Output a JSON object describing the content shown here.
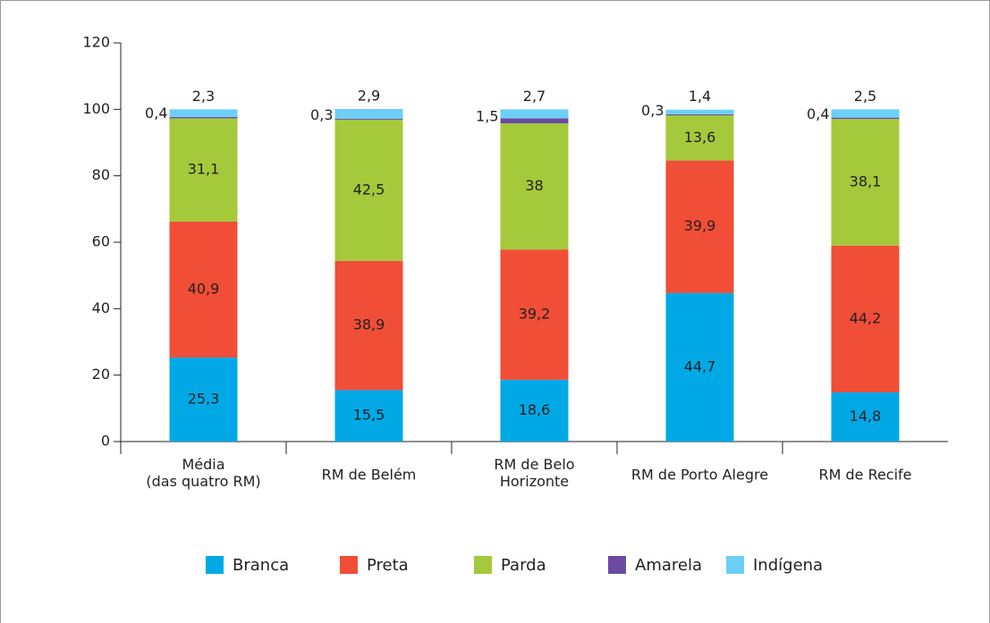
{
  "chart_data": {
    "type": "stacked_bar",
    "categories": [
      "Média\n(das quatro RM)",
      "RM de Belém",
      "RM de Belo\nHorizonte",
      "RM de Porto Alegre",
      "RM de Recife"
    ],
    "series": [
      {
        "name": "Branca",
        "color": "#00a9e6",
        "values": [
          25.3,
          15.5,
          18.6,
          44.7,
          14.8
        ],
        "value_labels": [
          "25,3",
          "15,5",
          "18,6",
          "44,7",
          "14,8"
        ]
      },
      {
        "name": "Preta",
        "color": "#f04e37",
        "values": [
          40.9,
          38.9,
          39.2,
          39.9,
          44.2
        ],
        "value_labels": [
          "40,9",
          "38,9",
          "39,2",
          "39,9",
          "44,2"
        ]
      },
      {
        "name": "Parda",
        "color": "#a4c93a",
        "values": [
          31.1,
          42.5,
          38,
          13.6,
          38.1
        ],
        "value_labels": [
          "31,1",
          "42,5",
          "38",
          "13,6",
          "38,1"
        ]
      },
      {
        "name": "Amarela",
        "color": "#6b4ba1",
        "values": [
          0.4,
          0.3,
          1.5,
          0.3,
          0.4
        ],
        "value_labels": [
          "0,4",
          "0,3",
          "1,5",
          "0,3",
          "0,4"
        ]
      },
      {
        "name": "Indígena",
        "color": "#6dcff6",
        "values": [
          2.3,
          2.9,
          2.7,
          1.4,
          2.5
        ],
        "value_labels": [
          "2,3",
          "2,9",
          "2,7",
          "1,4",
          "2,5"
        ]
      }
    ],
    "ylim": [
      0,
      120
    ],
    "yticks": [
      0,
      20,
      40,
      60,
      80,
      100,
      120
    ]
  }
}
